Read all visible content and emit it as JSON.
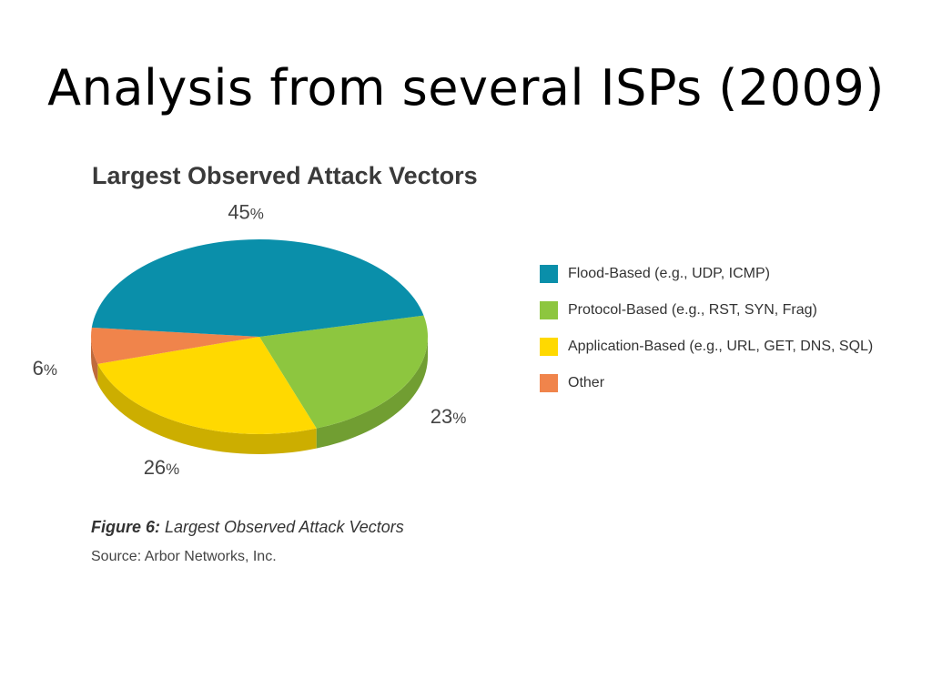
{
  "slide": {
    "title": "Analysis from several ISPs (2009)"
  },
  "figure": {
    "caption_number": "Figure 6:",
    "caption_text": " Largest Observed Attack Vectors",
    "source": "Source: Arbor Networks, Inc."
  },
  "chart_data": {
    "type": "pie",
    "title": "Largest Observed Attack Vectors",
    "slices": [
      {
        "name": "Flood-Based (e.g., UDP, ICMP)",
        "value": 45,
        "label": "45%",
        "color": "#0A8FAA"
      },
      {
        "name": "Protocol-Based (e.g., RST, SYN, Frag)",
        "value": 23,
        "label": "23%",
        "color": "#8DC63F"
      },
      {
        "name": "Application-Based (e.g., URL, GET, DNS, SQL)",
        "value": 26,
        "label": "26%",
        "color": "#FFD900"
      },
      {
        "name": "Other",
        "value": 6,
        "label": "6%",
        "color": "#F0844B"
      }
    ],
    "legend_position": "right",
    "style": "3d-tilted"
  }
}
